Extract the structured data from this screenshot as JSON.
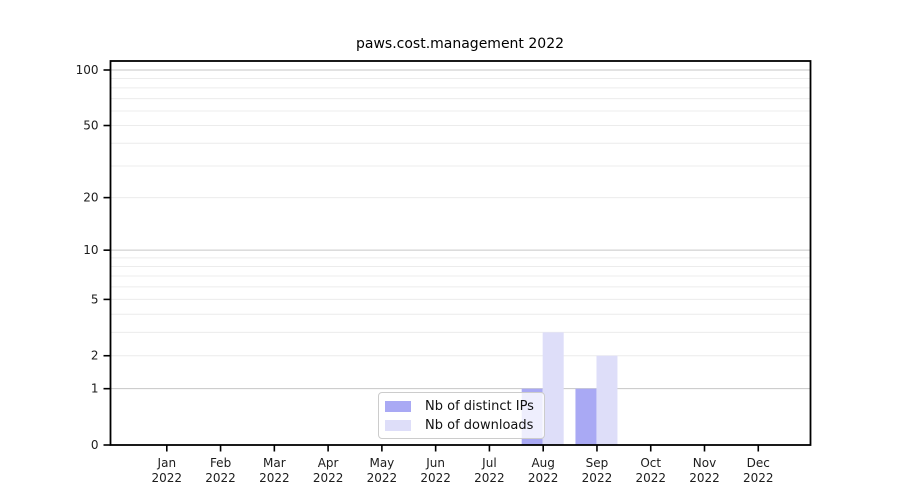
{
  "chart_data": {
    "type": "bar",
    "title": "paws.cost.management 2022",
    "categories": [
      "Jan",
      "Feb",
      "Mar",
      "Apr",
      "May",
      "Jun",
      "Jul",
      "Aug",
      "Sep",
      "Oct",
      "Nov",
      "Dec"
    ],
    "year_label": "2022",
    "series": [
      {
        "name": "Nb of distinct IPs",
        "color": "#a9a9f4",
        "values": [
          0,
          0,
          0,
          0,
          0,
          0,
          0,
          1,
          1,
          0,
          0,
          0
        ]
      },
      {
        "name": "Nb of downloads",
        "color": "#dedef9",
        "values": [
          0,
          0,
          0,
          0,
          0,
          0,
          0,
          3,
          2,
          0,
          0,
          0
        ]
      }
    ],
    "yscale": "log1p",
    "ylim": [
      0,
      112
    ],
    "y_ticks": [
      0,
      1,
      2,
      5,
      10,
      20,
      50,
      100
    ],
    "gridlines_major": [
      1,
      10,
      100
    ],
    "gridlines_minor": [
      2,
      3,
      4,
      5,
      6,
      7,
      8,
      9,
      20,
      30,
      40,
      50,
      60,
      70,
      80,
      90
    ],
    "legend_position": "lower center",
    "grid": true,
    "colors": {
      "spine": "#000000",
      "grid_major": "#c6c6c6",
      "grid_minor": "#ececec",
      "tick_label": "#1c1c1c",
      "legend_border": "#cccccc"
    }
  }
}
